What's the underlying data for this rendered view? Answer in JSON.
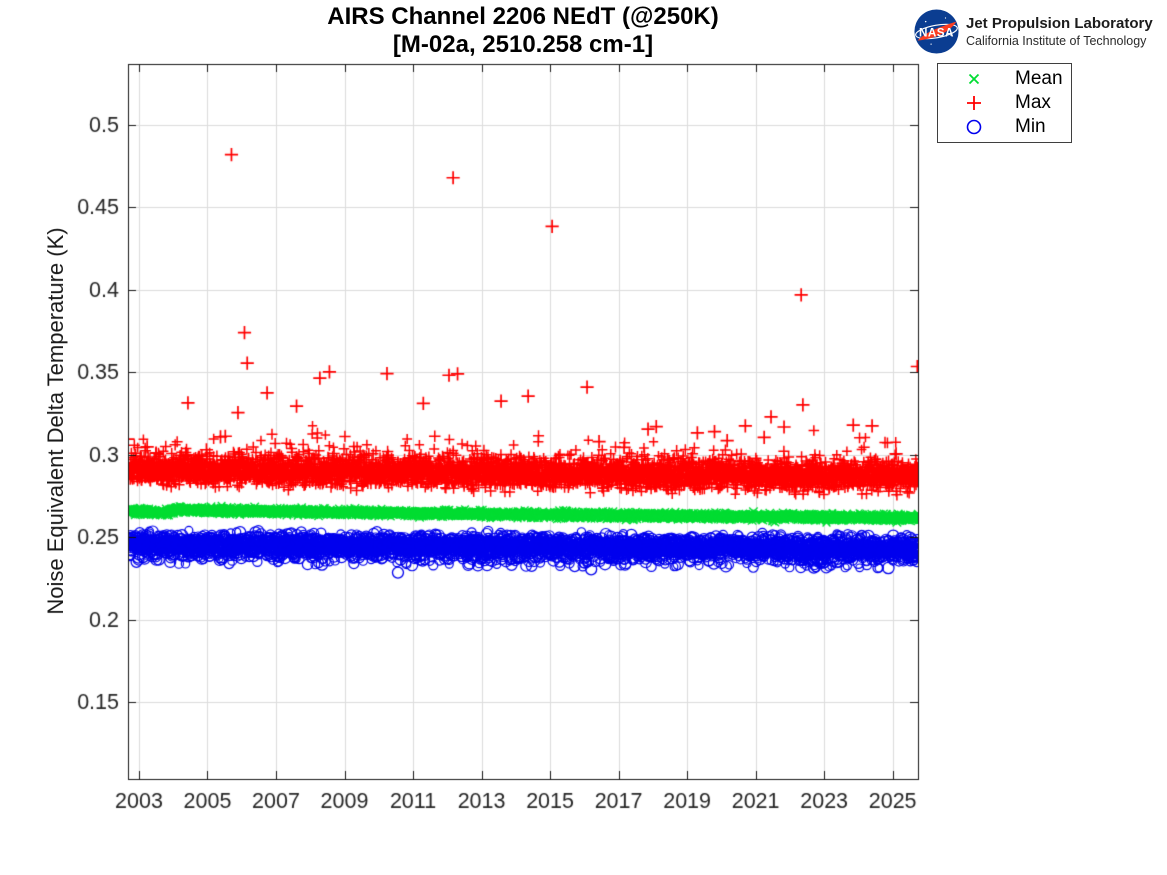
{
  "header": {
    "title": "AIRS Channel 2206 NEdT (@250K)",
    "subtitle": "[M-02a, 2510.258 cm-1]"
  },
  "brand": {
    "org": "Jet Propulsion Laboratory",
    "org_sub": "California Institute of Technology",
    "nasa_logo_icon": "nasa-meatball-icon",
    "nasa_text": "NASA",
    "logo_colors": {
      "disk": "#0b3d91",
      "swoosh": "#fc3d21",
      "text": "#ffffff",
      "orbit": "#ffffff"
    }
  },
  "chart_data": {
    "type": "scatter",
    "title": "AIRS Channel 2206 NEdT (@250K)",
    "subtitle": "[M-02a, 2510.258 cm-1]",
    "xlabel": "",
    "ylabel": "Noise Equivalent Delta Temperature (K)",
    "xlim": [
      2002.68,
      2025.74
    ],
    "ylim": [
      0.1033,
      0.537
    ],
    "xticks": [
      2003,
      2005,
      2007,
      2009,
      2011,
      2013,
      2015,
      2017,
      2019,
      2021,
      2023,
      2025
    ],
    "xtick_labels": [
      "2003",
      "2005",
      "2007",
      "2009",
      "2011",
      "2013",
      "2015",
      "2017",
      "2019",
      "2021",
      "2023",
      "2025"
    ],
    "yticks": [
      0.15,
      0.2,
      0.25,
      0.3,
      0.35,
      0.4,
      0.45,
      0.5
    ],
    "ytick_labels": [
      "0.15",
      "0.2",
      "0.25",
      "0.3",
      "0.35",
      "0.4",
      "0.45",
      "0.5"
    ],
    "grid": true,
    "grid_color": "#dcdcdc",
    "axis_color": "#151515",
    "tick_label_color": "#262626",
    "legend": {
      "position": "outside-top-right",
      "entries": [
        {
          "label": "Mean",
          "marker": "x",
          "color": "#00dd33"
        },
        {
          "label": "Max",
          "marker": "+",
          "color": "#ff0000"
        },
        {
          "label": "Min",
          "marker": "o",
          "color": "#0000ee"
        }
      ]
    },
    "series": [
      {
        "name": "Mean",
        "marker": "x",
        "color": "#00dd33",
        "band_trend": [
          [
            2002.68,
            0.2656
          ],
          [
            2003.88,
            0.2649
          ],
          [
            2003.94,
            0.2667
          ],
          [
            2005.5,
            0.2662
          ],
          [
            2008,
            0.2653
          ],
          [
            2012,
            0.2643
          ],
          [
            2016,
            0.2634
          ],
          [
            2020,
            0.2626
          ],
          [
            2025.74,
            0.2617
          ]
        ],
        "band_sigma": 0.00092,
        "tail_prob": 0,
        "tail_offset": 0,
        "tail_scale": 0,
        "tail_sign": 1,
        "outliers": []
      },
      {
        "name": "Max",
        "marker": "+",
        "color": "#ff0000",
        "band_trend": [
          [
            2002.68,
            0.2912
          ],
          [
            2006,
            0.2905
          ],
          [
            2010,
            0.2897
          ],
          [
            2014,
            0.2888
          ],
          [
            2018,
            0.288
          ],
          [
            2022,
            0.2873
          ],
          [
            2025.74,
            0.2868
          ]
        ],
        "band_sigma": 0.0042,
        "tail_prob": 0.055,
        "tail_offset": 0.0075,
        "tail_scale": 0.005,
        "tail_sign": 1,
        "outliers": [
          [
            2002.68,
            0.3095
          ],
          [
            2003.02,
            0.296
          ],
          [
            2003.24,
            0.3048
          ],
          [
            2003.5,
            0.301
          ],
          [
            2004.43,
            0.3315
          ],
          [
            2004.97,
            0.303
          ],
          [
            2005.38,
            0.3108
          ],
          [
            2005.52,
            0.3112
          ],
          [
            2005.7,
            0.482
          ],
          [
            2005.89,
            0.3255
          ],
          [
            2006.08,
            0.374
          ],
          [
            2006.16,
            0.3555
          ],
          [
            2006.74,
            0.3375
          ],
          [
            2007.1,
            0.2995
          ],
          [
            2007.6,
            0.3295
          ],
          [
            2008.28,
            0.3465
          ],
          [
            2008.56,
            0.3502
          ],
          [
            2009.3,
            0.2985
          ],
          [
            2010.24,
            0.3492
          ],
          [
            2010.9,
            0.2975
          ],
          [
            2011.3,
            0.3312
          ],
          [
            2012.05,
            0.3482
          ],
          [
            2012.17,
            0.468
          ],
          [
            2012.3,
            0.349
          ],
          [
            2013.57,
            0.3325
          ],
          [
            2014.36,
            0.3355
          ],
          [
            2015.06,
            0.4385
          ],
          [
            2016.08,
            0.341
          ],
          [
            2016.43,
            0.308
          ],
          [
            2017.16,
            0.3045
          ],
          [
            2017.86,
            0.3155
          ],
          [
            2018.1,
            0.317
          ],
          [
            2019.3,
            0.3132
          ],
          [
            2019.8,
            0.314
          ],
          [
            2020.17,
            0.3085
          ],
          [
            2020.7,
            0.3175
          ],
          [
            2021.25,
            0.3105
          ],
          [
            2021.45,
            0.323
          ],
          [
            2021.83,
            0.3168
          ],
          [
            2022.33,
            0.397
          ],
          [
            2022.38,
            0.3302
          ],
          [
            2023.85,
            0.318
          ],
          [
            2024.4,
            0.3175
          ],
          [
            2025.1,
            0.3005
          ],
          [
            2025.72,
            0.3535
          ]
        ]
      },
      {
        "name": "Min",
        "marker": "o",
        "color": "#0000ee",
        "band_trend": [
          [
            2002.68,
            0.2455
          ],
          [
            2006,
            0.2452
          ],
          [
            2010,
            0.2447
          ],
          [
            2014,
            0.2441
          ],
          [
            2018,
            0.2436
          ],
          [
            2022,
            0.2431
          ],
          [
            2025.74,
            0.2427
          ]
        ],
        "band_sigma": 0.0033,
        "tail_prob": 0.045,
        "tail_offset": 0.0065,
        "tail_scale": 0.0023,
        "tail_sign": -1,
        "outliers": [
          [
            2010.56,
            0.2285
          ],
          [
            2016.2,
            0.2305
          ],
          [
            2022.7,
            0.2315
          ]
        ]
      }
    ],
    "generation": {
      "seed": 7,
      "n_points": 4000
    }
  }
}
